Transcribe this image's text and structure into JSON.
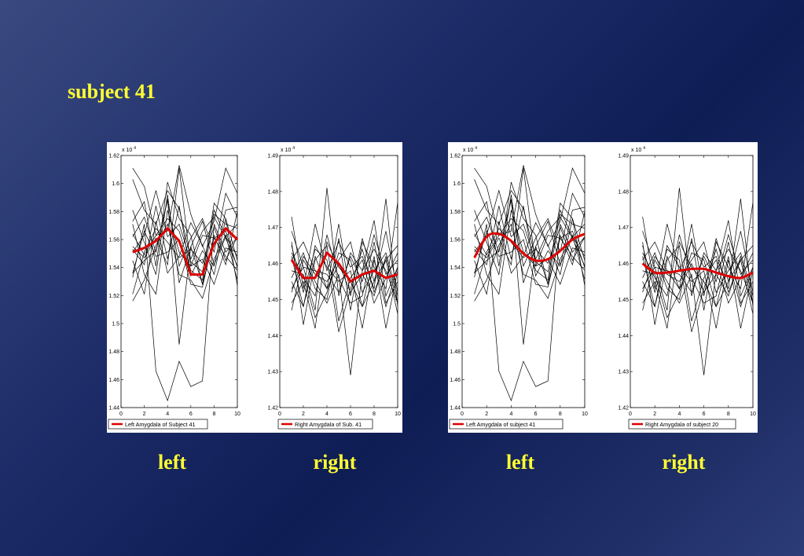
{
  "slide": {
    "title": "subject 41",
    "captions": [
      "left",
      "right",
      "left",
      "right"
    ]
  },
  "colors": {
    "accent_line": "#dd0000",
    "trace": "#000000",
    "caption": "#ffff33"
  },
  "chart_data": [
    {
      "type": "line",
      "legend": "Left Amygdala of Subject 41",
      "multiplier": "x 10",
      "exponent": "4",
      "xlim": [
        0,
        10
      ],
      "ylim": [
        1.44,
        1.62
      ],
      "xticks": [
        0,
        2,
        4,
        6,
        8,
        10
      ],
      "yticks": [
        1.44,
        1.46,
        1.48,
        1.5,
        1.52,
        1.54,
        1.56,
        1.58,
        1.6,
        1.62
      ],
      "x": [
        1,
        2,
        3,
        4,
        5,
        6,
        7,
        8,
        9,
        10
      ],
      "mean_series": {
        "name": "Left Amygdala of Subject 41",
        "values": [
          1.551,
          1.554,
          1.559,
          1.568,
          1.559,
          1.535,
          1.535,
          1.557,
          1.568,
          1.56
        ]
      },
      "traces": [
        [
          1.611,
          1.598,
          1.563,
          1.566,
          1.613,
          1.578,
          1.555,
          1.573,
          1.611,
          1.593
        ],
        [
          1.603,
          1.581,
          1.571,
          1.595,
          1.582,
          1.546,
          1.566,
          1.576,
          1.561,
          1.541
        ],
        [
          1.551,
          1.563,
          1.595,
          1.562,
          1.571,
          1.544,
          1.537,
          1.581,
          1.562,
          1.571
        ],
        [
          1.536,
          1.545,
          1.552,
          1.588,
          1.541,
          1.561,
          1.575,
          1.551,
          1.593,
          1.576
        ],
        [
          1.564,
          1.549,
          1.563,
          1.575,
          1.566,
          1.538,
          1.531,
          1.586,
          1.575,
          1.545
        ],
        [
          1.521,
          1.551,
          1.568,
          1.558,
          1.547,
          1.553,
          1.543,
          1.569,
          1.545,
          1.562
        ],
        [
          1.553,
          1.542,
          1.584,
          1.546,
          1.584,
          1.534,
          1.552,
          1.541,
          1.581,
          1.583
        ],
        [
          1.536,
          1.566,
          1.548,
          1.551,
          1.56,
          1.528,
          1.526,
          1.563,
          1.542,
          1.58
        ],
        [
          1.571,
          1.535,
          1.521,
          1.581,
          1.551,
          1.541,
          1.546,
          1.528,
          1.554,
          1.551
        ],
        [
          1.516,
          1.531,
          1.556,
          1.571,
          1.535,
          1.531,
          1.518,
          1.546,
          1.563,
          1.531
        ],
        [
          1.573,
          1.587,
          1.541,
          1.601,
          1.575,
          1.563,
          1.528,
          1.578,
          1.571,
          1.568
        ],
        [
          1.545,
          1.521,
          1.573,
          1.536,
          1.548,
          1.572,
          1.556,
          1.535,
          1.575,
          1.527
        ],
        [
          1.555,
          1.547,
          1.561,
          1.542,
          1.611,
          1.541,
          1.563,
          1.561,
          1.548,
          1.538
        ],
        [
          1.581,
          1.558,
          1.535,
          1.592,
          1.529,
          1.555,
          1.573,
          1.542,
          1.562,
          1.548
        ],
        [
          1.533,
          1.571,
          1.466,
          1.445,
          1.473,
          1.455,
          1.459,
          1.571,
          1.551,
          1.562
        ],
        [
          1.562,
          1.576,
          1.551,
          1.589,
          1.485,
          1.555,
          1.528,
          1.561,
          1.566,
          1.54
        ]
      ]
    },
    {
      "type": "line",
      "legend": "Right Amygdala of Sub. 41",
      "multiplier": "x 10",
      "exponent": "4",
      "xlim": [
        0,
        10
      ],
      "ylim": [
        1.42,
        1.49
      ],
      "xticks": [
        0,
        2,
        4,
        6,
        8,
        10
      ],
      "yticks": [
        1.42,
        1.43,
        1.44,
        1.45,
        1.46,
        1.47,
        1.48,
        1.49
      ],
      "x": [
        1,
        2,
        3,
        4,
        5,
        6,
        7,
        8,
        9,
        10
      ],
      "mean_series": {
        "name": "Right Amygdala of Sub. 41",
        "values": [
          1.461,
          1.456,
          1.456,
          1.463,
          1.46,
          1.455,
          1.457,
          1.458,
          1.456,
          1.457
        ]
      },
      "traces": [
        [
          1.473,
          1.453,
          1.471,
          1.458,
          1.466,
          1.459,
          1.462,
          1.453,
          1.478,
          1.448
        ],
        [
          1.469,
          1.459,
          1.447,
          1.481,
          1.451,
          1.463,
          1.458,
          1.472,
          1.451,
          1.459
        ],
        [
          1.455,
          1.448,
          1.462,
          1.453,
          1.471,
          1.451,
          1.467,
          1.455,
          1.461,
          1.465
        ],
        [
          1.463,
          1.456,
          1.451,
          1.468,
          1.456,
          1.449,
          1.451,
          1.466,
          1.449,
          1.455
        ],
        [
          1.452,
          1.462,
          1.457,
          1.455,
          1.461,
          1.466,
          1.452,
          1.458,
          1.463,
          1.451
        ],
        [
          1.466,
          1.443,
          1.461,
          1.465,
          1.444,
          1.456,
          1.461,
          1.449,
          1.456,
          1.463
        ],
        [
          1.458,
          1.457,
          1.445,
          1.452,
          1.463,
          1.461,
          1.448,
          1.462,
          1.442,
          1.458
        ],
        [
          1.447,
          1.461,
          1.455,
          1.449,
          1.457,
          1.429,
          1.458,
          1.464,
          1.458,
          1.449
        ],
        [
          1.465,
          1.452,
          1.464,
          1.461,
          1.441,
          1.453,
          1.464,
          1.452,
          1.461,
          1.446
        ],
        [
          1.461,
          1.466,
          1.458,
          1.457,
          1.452,
          1.462,
          1.455,
          1.468,
          1.457,
          1.461
        ],
        [
          1.449,
          1.455,
          1.442,
          1.466,
          1.459,
          1.455,
          1.448,
          1.455,
          1.469,
          1.452
        ],
        [
          1.456,
          1.463,
          1.453,
          1.45,
          1.467,
          1.447,
          1.466,
          1.459,
          1.453,
          1.477
        ],
        [
          1.462,
          1.448,
          1.465,
          1.459,
          1.455,
          1.458,
          1.442,
          1.461,
          1.448,
          1.459
        ],
        [
          1.453,
          1.459,
          1.458,
          1.453,
          1.46,
          1.452,
          1.457,
          1.451,
          1.462,
          1.449
        ]
      ]
    },
    {
      "type": "line",
      "legend": "Left Amygdala of subject 41",
      "multiplier": "x 10",
      "exponent": "4",
      "xlim": [
        0,
        10
      ],
      "ylim": [
        1.44,
        1.62
      ],
      "xticks": [
        0,
        2,
        4,
        6,
        8,
        10
      ],
      "yticks": [
        1.44,
        1.46,
        1.48,
        1.5,
        1.52,
        1.54,
        1.56,
        1.58,
        1.6,
        1.62
      ],
      "x": [
        1,
        2,
        3,
        4,
        5,
        6,
        7,
        8,
        9,
        10
      ],
      "mean_series": {
        "name": "Left Amygdala of subject 41",
        "values": [
          1.547,
          1.562,
          1.564,
          1.559,
          1.55,
          1.545,
          1.546,
          1.552,
          1.56,
          1.564
        ]
      },
      "traces": [
        [
          1.611,
          1.598,
          1.563,
          1.566,
          1.613,
          1.578,
          1.555,
          1.573,
          1.611,
          1.593
        ],
        [
          1.603,
          1.581,
          1.571,
          1.595,
          1.582,
          1.546,
          1.566,
          1.576,
          1.561,
          1.541
        ],
        [
          1.551,
          1.563,
          1.595,
          1.562,
          1.571,
          1.544,
          1.537,
          1.581,
          1.562,
          1.571
        ],
        [
          1.536,
          1.545,
          1.552,
          1.588,
          1.541,
          1.561,
          1.575,
          1.551,
          1.593,
          1.576
        ],
        [
          1.564,
          1.549,
          1.563,
          1.575,
          1.566,
          1.538,
          1.531,
          1.586,
          1.575,
          1.545
        ],
        [
          1.521,
          1.551,
          1.568,
          1.558,
          1.547,
          1.553,
          1.543,
          1.569,
          1.545,
          1.562
        ],
        [
          1.553,
          1.542,
          1.584,
          1.546,
          1.584,
          1.534,
          1.552,
          1.541,
          1.581,
          1.583
        ],
        [
          1.536,
          1.566,
          1.548,
          1.551,
          1.56,
          1.528,
          1.526,
          1.563,
          1.542,
          1.58
        ],
        [
          1.571,
          1.535,
          1.521,
          1.581,
          1.551,
          1.541,
          1.546,
          1.528,
          1.554,
          1.551
        ],
        [
          1.516,
          1.531,
          1.556,
          1.571,
          1.535,
          1.531,
          1.518,
          1.546,
          1.563,
          1.531
        ],
        [
          1.573,
          1.587,
          1.541,
          1.601,
          1.575,
          1.563,
          1.528,
          1.578,
          1.571,
          1.568
        ],
        [
          1.545,
          1.521,
          1.573,
          1.536,
          1.548,
          1.572,
          1.556,
          1.535,
          1.575,
          1.527
        ],
        [
          1.555,
          1.547,
          1.561,
          1.542,
          1.611,
          1.541,
          1.563,
          1.561,
          1.548,
          1.538
        ],
        [
          1.581,
          1.558,
          1.535,
          1.592,
          1.529,
          1.555,
          1.573,
          1.542,
          1.562,
          1.548
        ],
        [
          1.533,
          1.571,
          1.466,
          1.445,
          1.473,
          1.455,
          1.459,
          1.571,
          1.551,
          1.562
        ],
        [
          1.562,
          1.576,
          1.551,
          1.589,
          1.485,
          1.555,
          1.528,
          1.561,
          1.566,
          1.54
        ]
      ]
    },
    {
      "type": "line",
      "legend": "Right Amygdala of subject 20",
      "multiplier": "x 10",
      "exponent": "4",
      "xlim": [
        0,
        10
      ],
      "ylim": [
        1.42,
        1.49
      ],
      "xticks": [
        0,
        2,
        4,
        6,
        8,
        10
      ],
      "yticks": [
        1.42,
        1.43,
        1.44,
        1.45,
        1.46,
        1.47,
        1.48,
        1.49
      ],
      "x": [
        1,
        2,
        3,
        4,
        5,
        6,
        7,
        8,
        9,
        10
      ],
      "mean_series": {
        "name": "Right Amygdala of subject 20",
        "values": [
          1.46,
          1.4575,
          1.4575,
          1.458,
          1.4585,
          1.4585,
          1.4575,
          1.4565,
          1.456,
          1.4575
        ]
      },
      "traces": [
        [
          1.473,
          1.453,
          1.471,
          1.458,
          1.466,
          1.459,
          1.462,
          1.453,
          1.478,
          1.448
        ],
        [
          1.469,
          1.459,
          1.447,
          1.481,
          1.451,
          1.463,
          1.458,
          1.472,
          1.451,
          1.459
        ],
        [
          1.455,
          1.448,
          1.462,
          1.453,
          1.471,
          1.451,
          1.467,
          1.455,
          1.461,
          1.465
        ],
        [
          1.463,
          1.456,
          1.451,
          1.468,
          1.456,
          1.449,
          1.451,
          1.466,
          1.449,
          1.455
        ],
        [
          1.452,
          1.462,
          1.457,
          1.455,
          1.461,
          1.466,
          1.452,
          1.458,
          1.463,
          1.451
        ],
        [
          1.466,
          1.443,
          1.461,
          1.465,
          1.444,
          1.456,
          1.461,
          1.449,
          1.456,
          1.463
        ],
        [
          1.458,
          1.457,
          1.445,
          1.452,
          1.463,
          1.461,
          1.448,
          1.462,
          1.442,
          1.458
        ],
        [
          1.447,
          1.461,
          1.455,
          1.449,
          1.457,
          1.429,
          1.458,
          1.464,
          1.458,
          1.449
        ],
        [
          1.465,
          1.452,
          1.464,
          1.461,
          1.441,
          1.453,
          1.464,
          1.452,
          1.461,
          1.446
        ],
        [
          1.461,
          1.466,
          1.458,
          1.457,
          1.452,
          1.462,
          1.455,
          1.468,
          1.457,
          1.461
        ],
        [
          1.449,
          1.455,
          1.442,
          1.466,
          1.459,
          1.455,
          1.448,
          1.455,
          1.469,
          1.452
        ],
        [
          1.456,
          1.463,
          1.453,
          1.45,
          1.467,
          1.447,
          1.466,
          1.459,
          1.453,
          1.477
        ],
        [
          1.462,
          1.448,
          1.465,
          1.459,
          1.455,
          1.458,
          1.442,
          1.461,
          1.448,
          1.459
        ],
        [
          1.453,
          1.459,
          1.458,
          1.453,
          1.46,
          1.452,
          1.457,
          1.451,
          1.462,
          1.449
        ]
      ]
    }
  ]
}
